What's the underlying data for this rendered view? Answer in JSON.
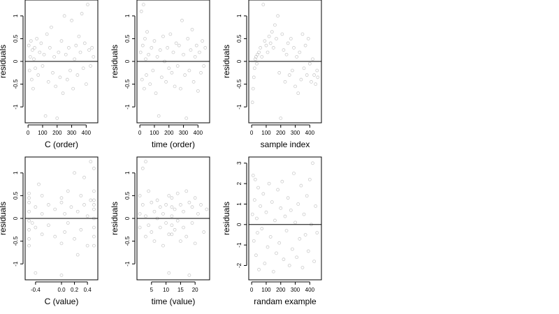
{
  "figure": {
    "panels": [
      {
        "xlabel": "C (order)",
        "ylabel": "residuals"
      },
      {
        "xlabel": "time (order)",
        "ylabel": "residuals"
      },
      {
        "xlabel": "sample index",
        "ylabel": "residuals"
      },
      {
        "xlabel": "C (value)",
        "ylabel": "residuals"
      },
      {
        "xlabel": "time (value)",
        "ylabel": "residuals"
      },
      {
        "xlabel": "randam example",
        "ylabel": "residuals"
      }
    ]
  },
  "chart_data": [
    {
      "type": "scatter",
      "title": "",
      "xlabel": "C (order)",
      "ylabel": "residuals",
      "xlim": [
        -20,
        480
      ],
      "ylim": [
        -1.35,
        1.35
      ],
      "xticks": [
        0,
        100,
        200,
        300,
        400
      ],
      "yticks": [
        -1.0,
        -0.5,
        0.0,
        0.5,
        1.0
      ],
      "hline": 0,
      "point_color": "#000000",
      "x": [
        5,
        10,
        15,
        20,
        25,
        30,
        35,
        40,
        45,
        50,
        60,
        70,
        80,
        90,
        100,
        110,
        120,
        130,
        140,
        150,
        160,
        170,
        180,
        190,
        200,
        210,
        220,
        230,
        240,
        250,
        260,
        270,
        280,
        290,
        300,
        310,
        320,
        330,
        340,
        350,
        360,
        370,
        380,
        390,
        400,
        410,
        420,
        430,
        440,
        450
      ],
      "y": [
        0.35,
        -0.2,
        0.1,
        0.45,
        -0.4,
        0.25,
        -0.6,
        0.05,
        0.3,
        -0.15,
        0.5,
        -0.3,
        0.2,
        0.4,
        -0.1,
        0.15,
        -1.2,
        0.6,
        -0.45,
        0.3,
        0.75,
        -0.25,
        0.1,
        -0.55,
        -1.25,
        0.2,
        -0.35,
        0.45,
        -0.7,
        1.0,
        0.15,
        -0.4,
        0.3,
        -0.2,
        0.9,
        -0.6,
        0.05,
        0.35,
        -0.3,
        0.55,
        0.2,
        1.05,
        -0.15,
        0.4,
        -0.5,
        1.25,
        0.25,
        -0.1,
        0.3,
        0.1
      ]
    },
    {
      "type": "scatter",
      "title": "",
      "xlabel": "time (order)",
      "ylabel": "residuals",
      "xlim": [
        -20,
        480
      ],
      "ylim": [
        -1.35,
        1.35
      ],
      "xticks": [
        0,
        100,
        200,
        300,
        400
      ],
      "yticks": [
        -1.0,
        -0.5,
        0.0,
        0.5,
        1.0
      ],
      "hline": 0,
      "point_color": "#000000",
      "x": [
        5,
        10,
        15,
        20,
        25,
        30,
        35,
        40,
        45,
        50,
        60,
        70,
        80,
        90,
        100,
        110,
        120,
        130,
        140,
        150,
        160,
        170,
        180,
        190,
        200,
        210,
        220,
        230,
        240,
        250,
        260,
        270,
        280,
        290,
        300,
        310,
        320,
        330,
        340,
        350,
        360,
        370,
        380,
        390,
        400,
        410,
        420,
        430,
        440,
        450
      ],
      "y": [
        0.2,
        1.1,
        -0.4,
        0.35,
        1.25,
        -0.6,
        0.5,
        0.05,
        -0.3,
        0.65,
        0.15,
        -0.5,
        0.3,
        -0.2,
        0.45,
        -0.7,
        0.1,
        -1.2,
        0.25,
        -0.35,
        0.55,
        0.0,
        -0.45,
        0.3,
        -0.15,
        0.6,
        -0.25,
        0.2,
        -0.55,
        0.4,
        -0.1,
        0.35,
        -0.6,
        0.9,
        0.15,
        -0.3,
        -1.25,
        0.5,
        -0.2,
        0.25,
        0.7,
        -0.45,
        0.1,
        0.35,
        -0.65,
        0.2,
        -0.25,
        0.45,
        -0.1,
        0.3
      ]
    },
    {
      "type": "scatter",
      "title": "",
      "xlabel": "sample index",
      "ylabel": "residuals",
      "xlim": [
        -20,
        480
      ],
      "ylim": [
        -1.35,
        1.35
      ],
      "xticks": [
        0,
        100,
        200,
        300,
        400
      ],
      "yticks": [
        -1.0,
        -0.5,
        0.0,
        0.5,
        1.0
      ],
      "hline": 0,
      "point_color": "#000000",
      "x": [
        5,
        10,
        15,
        20,
        25,
        30,
        35,
        40,
        50,
        60,
        70,
        80,
        90,
        100,
        110,
        120,
        130,
        140,
        150,
        160,
        170,
        180,
        190,
        200,
        210,
        220,
        230,
        240,
        250,
        260,
        270,
        280,
        290,
        300,
        310,
        320,
        330,
        340,
        350,
        360,
        370,
        380,
        390,
        400,
        410,
        420,
        430,
        440,
        450,
        455
      ],
      "y": [
        -0.9,
        -0.6,
        -0.35,
        -0.15,
        0.05,
        0.1,
        -0.05,
        0.15,
        0.2,
        0.3,
        0.1,
        1.25,
        0.45,
        0.35,
        0.2,
        0.55,
        0.4,
        0.65,
        0.3,
        0.8,
        0.5,
        1.0,
        -0.25,
        -1.25,
        0.6,
        0.25,
        -0.45,
        0.15,
        0.4,
        -0.3,
        0.5,
        -0.2,
        0.3,
        -0.55,
        0.1,
        -0.7,
        0.2,
        -0.4,
        0.6,
        -0.15,
        0.35,
        -0.3,
        0.5,
        -0.05,
        -0.45,
        0.05,
        -0.3,
        -0.5,
        -0.2,
        -0.35
      ]
    },
    {
      "type": "scatter",
      "title": "",
      "xlabel": "C (value)",
      "ylabel": "residuals",
      "xlim": [
        -0.56,
        0.56
      ],
      "ylim": [
        -1.35,
        1.35
      ],
      "xticks": [
        -0.4,
        0.0,
        0.2,
        0.4
      ],
      "xtick_labels": [
        "-0.4",
        "0.0",
        "0.2",
        "0.4"
      ],
      "yticks": [
        -1.0,
        -0.5,
        0.0,
        0.5,
        1.0
      ],
      "hline": 0,
      "point_color": "#000000",
      "x": [
        -0.5,
        -0.5,
        -0.5,
        -0.5,
        -0.5,
        -0.5,
        -0.5,
        -0.5,
        -0.4,
        -0.4,
        -0.4,
        -0.3,
        -0.3,
        -0.3,
        -0.2,
        -0.2,
        -0.1,
        -0.1,
        0.0,
        0.0,
        0.0,
        0.05,
        0.05,
        0.1,
        0.1,
        0.15,
        0.2,
        0.2,
        0.25,
        0.3,
        0.3,
        0.35,
        0.4,
        0.4,
        0.45,
        0.45,
        0.5,
        0.5,
        0.5,
        0.5,
        0.5,
        0.5,
        0.5,
        0.5,
        0.5,
        -0.35,
        0.25,
        0.35,
        -0.45,
        0.0
      ],
      "y": [
        0.55,
        0.35,
        0.15,
        -0.05,
        -0.25,
        -0.45,
        -0.6,
        0.45,
        0.25,
        -0.2,
        -1.2,
        0.5,
        0.1,
        -0.35,
        0.3,
        -0.15,
        0.2,
        -0.4,
        0.35,
        -0.55,
        -1.25,
        0.1,
        -0.3,
        0.6,
        -0.1,
        0.25,
        1.0,
        -0.45,
        0.15,
        0.5,
        -0.25,
        0.3,
        0.05,
        -0.6,
        0.4,
        1.25,
        0.6,
        0.4,
        0.2,
        0.0,
        -0.2,
        -0.4,
        -0.6,
        1.1,
        0.3,
        0.75,
        -0.8,
        0.9,
        -0.1,
        0.45
      ]
    },
    {
      "type": "scatter",
      "title": "",
      "xlabel": "time (value)",
      "ylabel": "residuals",
      "xlim": [
        0,
        25
      ],
      "ylim": [
        -1.35,
        1.35
      ],
      "xticks": [
        5,
        10,
        15,
        20
      ],
      "yticks": [
        -1.0,
        -0.5,
        0.0,
        0.5,
        1.0
      ],
      "hline": 0,
      "point_color": "#000000",
      "x": [
        1,
        1,
        1,
        2,
        2,
        3,
        3,
        3,
        4,
        4,
        5,
        5,
        6,
        6,
        7,
        7,
        8,
        8,
        9,
        9,
        10,
        10,
        11,
        11,
        11,
        12,
        12,
        12,
        12,
        12,
        13,
        13,
        14,
        14,
        15,
        15,
        16,
        16,
        17,
        17,
        18,
        18,
        19,
        19,
        20,
        20,
        21,
        22,
        23,
        24
      ],
      "y": [
        0.1,
        -0.2,
        0.5,
        1.1,
        0.3,
        -0.4,
        1.25,
        0.05,
        0.6,
        -0.15,
        0.35,
        -0.3,
        0.15,
        -0.5,
        0.4,
        0.0,
        -0.2,
        0.25,
        -0.6,
        0.1,
        0.3,
        -0.1,
        -1.2,
        0.5,
        -0.35,
        0.45,
        0.25,
        0.05,
        -0.15,
        -0.35,
        0.2,
        -0.25,
        0.55,
        -0.05,
        0.3,
        -0.5,
        0.15,
        -0.2,
        0.6,
        -0.4,
        -1.25,
        0.35,
        -0.1,
        0.25,
        0.45,
        -0.55,
        0.1,
        0.3,
        -0.3,
        0.2
      ]
    },
    {
      "type": "scatter",
      "title": "",
      "xlabel": "randam example",
      "ylabel": "residuals",
      "xlim": [
        -20,
        480
      ],
      "ylim": [
        -2.7,
        3.3
      ],
      "xticks": [
        0,
        100,
        200,
        300,
        400
      ],
      "yticks": [
        -2,
        -1,
        0,
        1,
        2,
        3
      ],
      "hline": 0,
      "point_color": "#000000",
      "x": [
        5,
        10,
        15,
        20,
        25,
        30,
        35,
        40,
        45,
        50,
        60,
        70,
        80,
        90,
        100,
        110,
        120,
        130,
        140,
        150,
        160,
        170,
        180,
        190,
        200,
        210,
        220,
        230,
        240,
        250,
        260,
        270,
        280,
        290,
        300,
        310,
        320,
        330,
        340,
        350,
        360,
        370,
        380,
        390,
        400,
        410,
        420,
        430,
        440,
        450
      ],
      "y": [
        0.5,
        2.4,
        -0.8,
        1.2,
        2.2,
        -1.5,
        0.3,
        -0.4,
        1.8,
        -2.2,
        0.9,
        -0.2,
        1.5,
        -1.9,
        0.6,
        -1.1,
        2.0,
        -0.6,
        1.1,
        -2.3,
        0.2,
        -1.4,
        1.7,
        -0.9,
        0.8,
        2.1,
        -1.7,
        0.4,
        -0.3,
        1.3,
        -2.0,
        0.7,
        -1.2,
        2.5,
        0.1,
        -1.6,
        1.0,
        -0.7,
        1.9,
        -2.1,
        0.5,
        -0.5,
        1.4,
        -1.3,
        2.2,
        0.0,
        3.0,
        -1.8,
        0.9,
        -0.4
      ]
    }
  ]
}
